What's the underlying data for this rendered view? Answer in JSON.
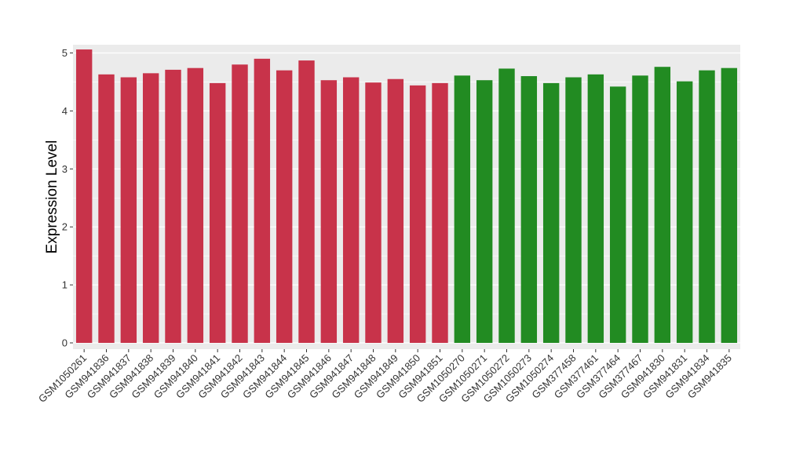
{
  "chart_data": {
    "type": "bar",
    "title": "",
    "xlabel": "",
    "ylabel": "Expression Level",
    "ylim": [
      0,
      5.25
    ],
    "yticks": [
      0,
      1,
      2,
      3,
      4,
      5
    ],
    "grid": true,
    "categories": [
      "GSM1050261",
      "GSM941836",
      "GSM941837",
      "GSM941838",
      "GSM941839",
      "GSM941840",
      "GSM941841",
      "GSM941842",
      "GSM941843",
      "GSM941844",
      "GSM941845",
      "GSM941846",
      "GSM941847",
      "GSM941848",
      "GSM941849",
      "GSM941850",
      "GSM941851",
      "GSM1050270",
      "GSM1050271",
      "GSM1050272",
      "GSM1050273",
      "GSM1050274",
      "GSM377458",
      "GSM377461",
      "GSM377464",
      "GSM377467",
      "GSM941830",
      "GSM941831",
      "GSM941834",
      "GSM941835"
    ],
    "values": [
      5.06,
      4.63,
      4.58,
      4.65,
      4.71,
      4.74,
      4.48,
      4.8,
      4.9,
      4.7,
      4.87,
      4.53,
      4.58,
      4.49,
      4.55,
      4.44,
      4.48,
      4.61,
      4.53,
      4.73,
      4.6,
      4.48,
      4.58,
      4.63,
      4.42,
      4.61,
      4.76,
      4.51,
      4.7,
      4.74
    ],
    "groups": [
      1,
      1,
      1,
      1,
      1,
      1,
      1,
      1,
      1,
      1,
      1,
      1,
      1,
      1,
      1,
      1,
      1,
      2,
      2,
      2,
      2,
      2,
      2,
      2,
      2,
      2,
      2,
      2,
      2,
      2
    ],
    "group_colors": {
      "1": "#c8334a",
      "2": "#228b22"
    },
    "panel_background": "#ebebeb",
    "grid_color": "#ffffff"
  }
}
